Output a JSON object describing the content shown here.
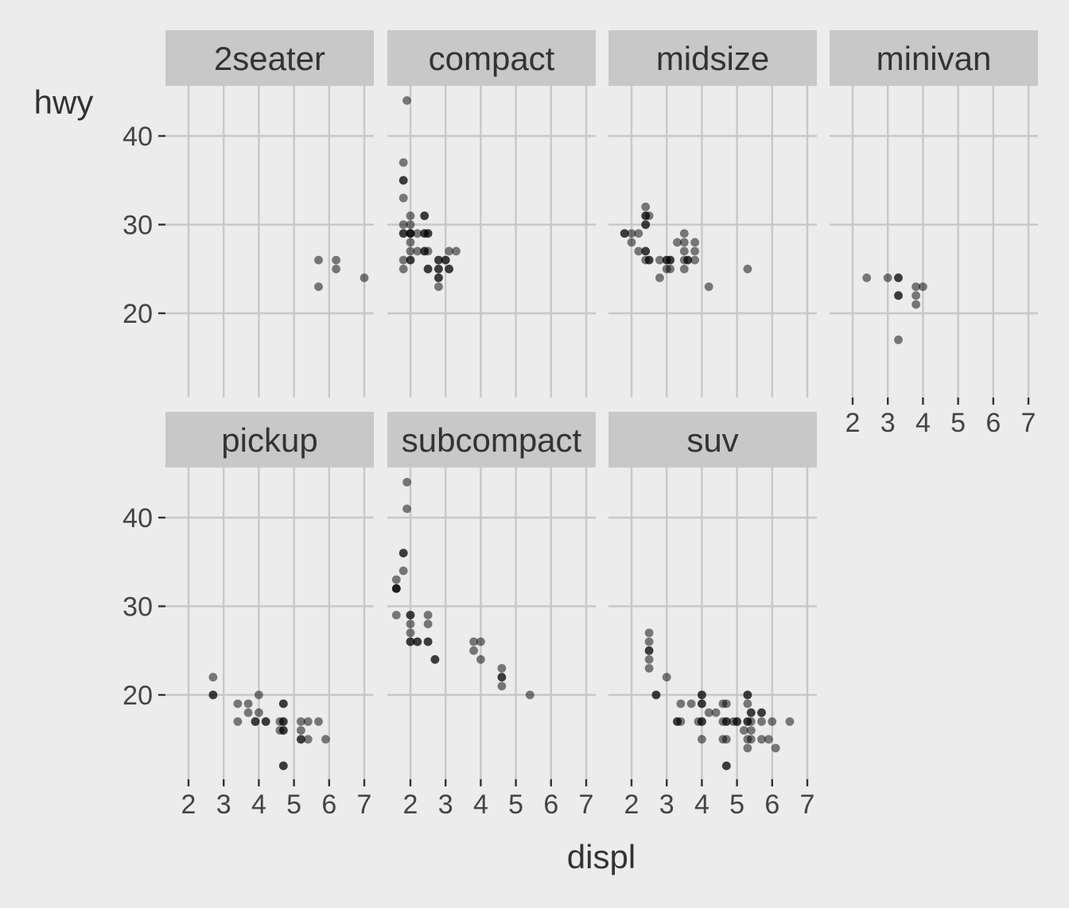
{
  "chart_data": {
    "type": "scatter",
    "facet_by": "class",
    "xlabel": "displ",
    "ylabel": "hwy",
    "xlim": [
      1.35,
      7.25
    ],
    "ylim": [
      10.4,
      45.6
    ],
    "x_ticks": [
      2,
      3,
      4,
      5,
      6,
      7
    ],
    "y_ticks": [
      20,
      30,
      40
    ],
    "grid": true,
    "point_color": "#000000",
    "point_alpha": 0.5,
    "background": "#ececec",
    "gridline_color": "#c8c8c8",
    "strip_color": "#c8c8c8",
    "panels": [
      {
        "label": "2seater",
        "points": [
          [
            5.7,
            26
          ],
          [
            5.7,
            23
          ],
          [
            6.2,
            26
          ],
          [
            6.2,
            25
          ],
          [
            7.0,
            24
          ]
        ]
      },
      {
        "label": "compact",
        "points": [
          [
            1.9,
            44
          ],
          [
            1.8,
            37
          ],
          [
            1.8,
            35
          ],
          [
            1.8,
            35
          ],
          [
            1.8,
            33
          ],
          [
            1.8,
            30
          ],
          [
            1.8,
            29
          ],
          [
            1.8,
            29
          ],
          [
            1.8,
            26
          ],
          [
            1.8,
            25
          ],
          [
            2.0,
            31
          ],
          [
            2.0,
            30
          ],
          [
            2.0,
            29
          ],
          [
            2.0,
            29
          ],
          [
            2.0,
            29
          ],
          [
            2.0,
            28
          ],
          [
            2.0,
            27
          ],
          [
            2.0,
            26
          ],
          [
            2.0,
            26
          ],
          [
            2.2,
            29
          ],
          [
            2.2,
            27
          ],
          [
            2.4,
            31
          ],
          [
            2.4,
            31
          ],
          [
            2.4,
            29
          ],
          [
            2.4,
            29
          ],
          [
            2.4,
            27
          ],
          [
            2.4,
            27
          ],
          [
            2.5,
            29
          ],
          [
            2.5,
            29
          ],
          [
            2.5,
            27
          ],
          [
            2.5,
            25
          ],
          [
            2.5,
            25
          ],
          [
            2.8,
            26
          ],
          [
            2.8,
            26
          ],
          [
            2.8,
            25
          ],
          [
            2.8,
            25
          ],
          [
            2.8,
            24
          ],
          [
            2.8,
            24
          ],
          [
            2.8,
            23
          ],
          [
            3.0,
            26
          ],
          [
            3.0,
            26
          ],
          [
            3.1,
            27
          ],
          [
            3.1,
            25
          ],
          [
            3.1,
            25
          ],
          [
            3.3,
            27
          ]
        ]
      },
      {
        "label": "midsize",
        "points": [
          [
            1.8,
            29
          ],
          [
            1.8,
            29
          ],
          [
            2.0,
            29
          ],
          [
            2.0,
            28
          ],
          [
            2.2,
            29
          ],
          [
            2.2,
            27
          ],
          [
            2.4,
            32
          ],
          [
            2.4,
            31
          ],
          [
            2.4,
            31
          ],
          [
            2.4,
            30
          ],
          [
            2.4,
            30
          ],
          [
            2.4,
            27
          ],
          [
            2.4,
            27
          ],
          [
            2.4,
            26
          ],
          [
            2.5,
            31
          ],
          [
            2.5,
            26
          ],
          [
            2.5,
            26
          ],
          [
            2.8,
            26
          ],
          [
            2.8,
            24
          ],
          [
            3.0,
            26
          ],
          [
            3.0,
            26
          ],
          [
            3.0,
            25
          ],
          [
            3.1,
            26
          ],
          [
            3.1,
            26
          ],
          [
            3.1,
            25
          ],
          [
            3.3,
            28
          ],
          [
            3.5,
            29
          ],
          [
            3.5,
            28
          ],
          [
            3.5,
            27
          ],
          [
            3.5,
            26
          ],
          [
            3.5,
            25
          ],
          [
            3.6,
            26
          ],
          [
            3.6,
            26
          ],
          [
            3.8,
            28
          ],
          [
            3.8,
            27
          ],
          [
            3.8,
            26
          ],
          [
            4.2,
            23
          ],
          [
            5.3,
            25
          ]
        ]
      },
      {
        "label": "minivan",
        "points": [
          [
            2.4,
            24
          ],
          [
            3.0,
            24
          ],
          [
            3.3,
            24
          ],
          [
            3.3,
            24
          ],
          [
            3.3,
            22
          ],
          [
            3.3,
            22
          ],
          [
            3.3,
            17
          ],
          [
            3.8,
            23
          ],
          [
            3.8,
            22
          ],
          [
            3.8,
            21
          ],
          [
            4.0,
            23
          ]
        ]
      },
      {
        "label": "pickup",
        "points": [
          [
            2.7,
            22
          ],
          [
            2.7,
            20
          ],
          [
            2.7,
            20
          ],
          [
            3.4,
            19
          ],
          [
            3.4,
            17
          ],
          [
            3.7,
            19
          ],
          [
            3.7,
            18
          ],
          [
            3.9,
            17
          ],
          [
            3.9,
            17
          ],
          [
            4.0,
            20
          ],
          [
            4.0,
            18
          ],
          [
            4.2,
            17
          ],
          [
            4.2,
            17
          ],
          [
            4.6,
            17
          ],
          [
            4.6,
            16
          ],
          [
            4.7,
            19
          ],
          [
            4.7,
            19
          ],
          [
            4.7,
            17
          ],
          [
            4.7,
            17
          ],
          [
            4.7,
            16
          ],
          [
            4.7,
            16
          ],
          [
            4.7,
            12
          ],
          [
            4.7,
            12
          ],
          [
            5.2,
            17
          ],
          [
            5.2,
            16
          ],
          [
            5.2,
            15
          ],
          [
            5.2,
            15
          ],
          [
            5.4,
            17
          ],
          [
            5.4,
            15
          ],
          [
            5.7,
            17
          ],
          [
            5.9,
            15
          ]
        ]
      },
      {
        "label": "subcompact",
        "points": [
          [
            1.9,
            44
          ],
          [
            1.9,
            41
          ],
          [
            1.8,
            36
          ],
          [
            1.8,
            36
          ],
          [
            1.8,
            34
          ],
          [
            1.6,
            33
          ],
          [
            1.6,
            32
          ],
          [
            1.6,
            32
          ],
          [
            1.6,
            32
          ],
          [
            1.6,
            29
          ],
          [
            2.0,
            29
          ],
          [
            2.0,
            29
          ],
          [
            2.0,
            28
          ],
          [
            2.0,
            27
          ],
          [
            2.0,
            26
          ],
          [
            2.0,
            26
          ],
          [
            2.2,
            26
          ],
          [
            2.2,
            26
          ],
          [
            2.5,
            29
          ],
          [
            2.5,
            28
          ],
          [
            2.5,
            26
          ],
          [
            2.5,
            26
          ],
          [
            2.7,
            24
          ],
          [
            2.7,
            24
          ],
          [
            3.8,
            26
          ],
          [
            3.8,
            25
          ],
          [
            4.0,
            26
          ],
          [
            4.0,
            24
          ],
          [
            4.6,
            23
          ],
          [
            4.6,
            22
          ],
          [
            4.6,
            22
          ],
          [
            4.6,
            21
          ],
          [
            5.4,
            20
          ]
        ]
      },
      {
        "label": "suv",
        "points": [
          [
            2.5,
            27
          ],
          [
            2.5,
            26
          ],
          [
            2.5,
            25
          ],
          [
            2.5,
            25
          ],
          [
            2.5,
            24
          ],
          [
            2.5,
            23
          ],
          [
            2.7,
            20
          ],
          [
            2.7,
            20
          ],
          [
            3.0,
            22
          ],
          [
            3.3,
            17
          ],
          [
            3.3,
            17
          ],
          [
            3.4,
            19
          ],
          [
            3.4,
            17
          ],
          [
            3.7,
            19
          ],
          [
            3.9,
            17
          ],
          [
            4.0,
            20
          ],
          [
            4.0,
            20
          ],
          [
            4.0,
            19
          ],
          [
            4.0,
            19
          ],
          [
            4.0,
            17
          ],
          [
            4.0,
            17
          ],
          [
            4.0,
            15
          ],
          [
            4.2,
            18
          ],
          [
            4.4,
            18
          ],
          [
            4.6,
            19
          ],
          [
            4.6,
            17
          ],
          [
            4.6,
            15
          ],
          [
            4.7,
            19
          ],
          [
            4.7,
            17
          ],
          [
            4.7,
            17
          ],
          [
            4.7,
            15
          ],
          [
            4.7,
            12
          ],
          [
            4.7,
            12
          ],
          [
            4.9,
            17
          ],
          [
            5.0,
            17
          ],
          [
            5.0,
            17
          ],
          [
            5.2,
            16
          ],
          [
            5.3,
            20
          ],
          [
            5.3,
            20
          ],
          [
            5.3,
            19
          ],
          [
            5.3,
            17
          ],
          [
            5.3,
            17
          ],
          [
            5.3,
            15
          ],
          [
            5.3,
            14
          ],
          [
            5.4,
            18
          ],
          [
            5.4,
            18
          ],
          [
            5.4,
            17
          ],
          [
            5.4,
            16
          ],
          [
            5.4,
            15
          ],
          [
            5.7,
            18
          ],
          [
            5.7,
            18
          ],
          [
            5.7,
            17
          ],
          [
            5.7,
            15
          ],
          [
            5.9,
            15
          ],
          [
            6.0,
            17
          ],
          [
            6.1,
            14
          ],
          [
            6.5,
            17
          ]
        ]
      }
    ]
  }
}
